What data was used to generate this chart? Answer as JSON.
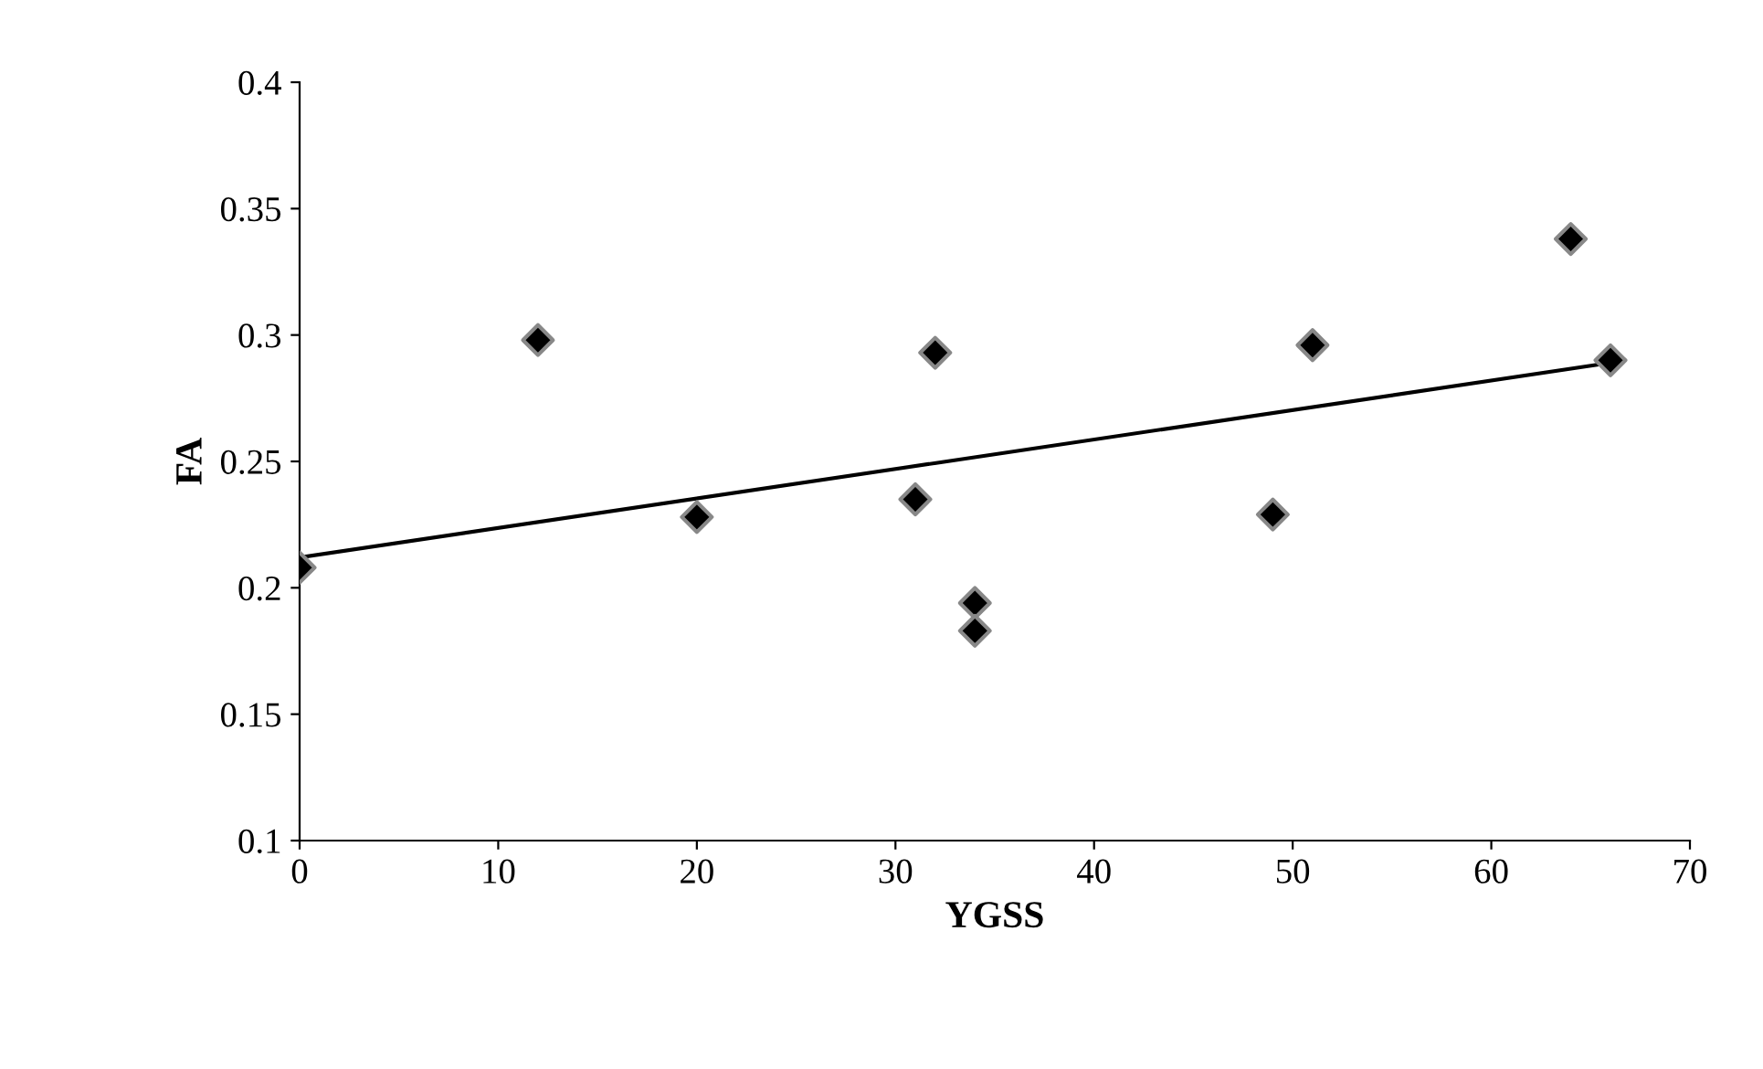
{
  "chart_data": {
    "type": "scatter",
    "xlabel": "YGSS",
    "ylabel": "FA",
    "x": [
      0,
      12,
      20,
      31,
      32,
      34,
      34,
      49,
      51,
      64,
      66
    ],
    "series": [
      {
        "color": "#000000",
        "marker": "diamond",
        "values": [
          0.208,
          0.298,
          0.228,
          0.235,
          0.293,
          0.194,
          0.183,
          0.229,
          0.296,
          0.338,
          0.29
        ]
      },
      {
        "type": "line",
        "color": "#000000",
        "x": [
          0,
          66
        ],
        "values": [
          0.212,
          0.289
        ]
      }
    ],
    "xlim": [
      0,
      70
    ],
    "xticks": [
      0,
      10,
      20,
      30,
      40,
      50,
      60,
      70
    ],
    "ylim": [
      0.1,
      0.4
    ],
    "yticks": [
      0.1,
      0.15,
      0.2,
      0.25,
      0.3,
      0.35,
      0.4
    ],
    "grid": false,
    "legend": false
  }
}
